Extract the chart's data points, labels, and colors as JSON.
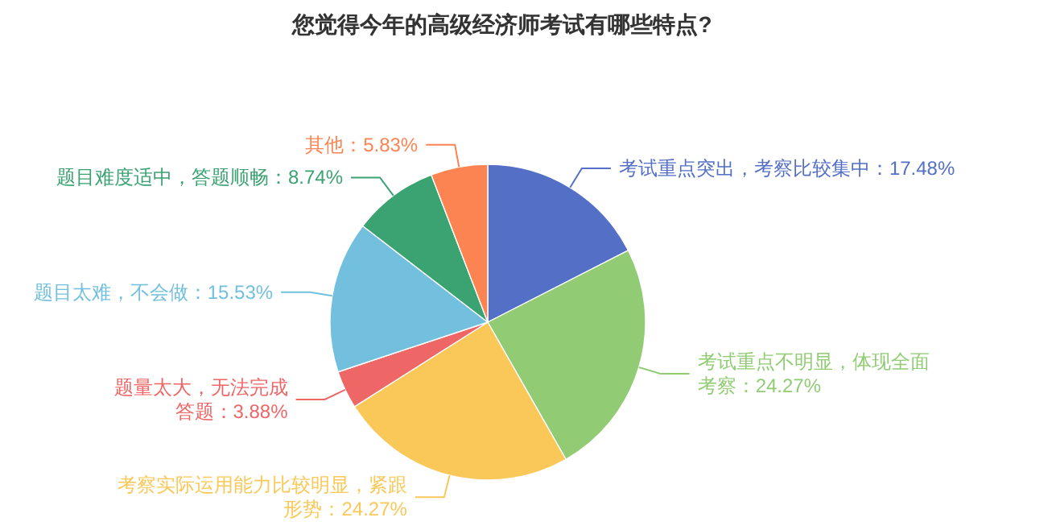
{
  "chart_data": {
    "type": "pie",
    "title": "您觉得今年的高级经济师考试有哪些特点?",
    "categories": [
      "考试重点突出，考察比较集中",
      "考试重点不明显，体现全面考察",
      "考察实际运用能力比较明显，紧跟形势",
      "题量太大，无法完成答题",
      "题目太难，不会做",
      "题目难度适中，答题顺畅",
      "其他"
    ],
    "values": [
      17.48,
      24.27,
      24.27,
      3.88,
      15.53,
      8.74,
      5.83
    ],
    "colors": [
      "#5470c6",
      "#91cc75",
      "#fac858",
      "#ee6666",
      "#73c0de",
      "#3ba272",
      "#fc8452"
    ],
    "value_labels": [
      "：17.48%",
      "：24.27%",
      "：24.27%",
      "：3.88%",
      "：15.53%",
      "：8.74%",
      "：5.83%"
    ]
  }
}
